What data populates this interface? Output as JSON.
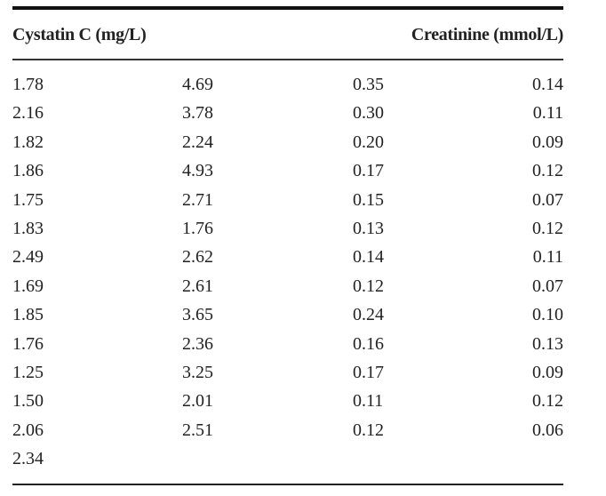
{
  "table": {
    "headers": [
      "Cystatin C (mg/L)",
      "Creatinine (mmol/L)"
    ],
    "rows": [
      [
        "1.78",
        "4.69",
        "0.35",
        "0.14"
      ],
      [
        "2.16",
        "3.78",
        "0.30",
        "0.11"
      ],
      [
        "1.82",
        "2.24",
        "0.20",
        "0.09"
      ],
      [
        "1.86",
        "4.93",
        "0.17",
        "0.12"
      ],
      [
        "1.75",
        "2.71",
        "0.15",
        "0.07"
      ],
      [
        "1.83",
        "1.76",
        "0.13",
        "0.12"
      ],
      [
        "2.49",
        "2.62",
        "0.14",
        "0.11"
      ],
      [
        "1.69",
        "2.61",
        "0.12",
        "0.07"
      ],
      [
        "1.85",
        "3.65",
        "0.24",
        "0.10"
      ],
      [
        "1.76",
        "2.36",
        "0.16",
        "0.13"
      ],
      [
        "1.25",
        "3.25",
        "0.17",
        "0.09"
      ],
      [
        "1.50",
        "2.01",
        "0.11",
        "0.12"
      ],
      [
        "2.06",
        "2.51",
        "0.12",
        "0.06"
      ],
      [
        "2.34",
        "",
        "",
        ""
      ]
    ]
  }
}
